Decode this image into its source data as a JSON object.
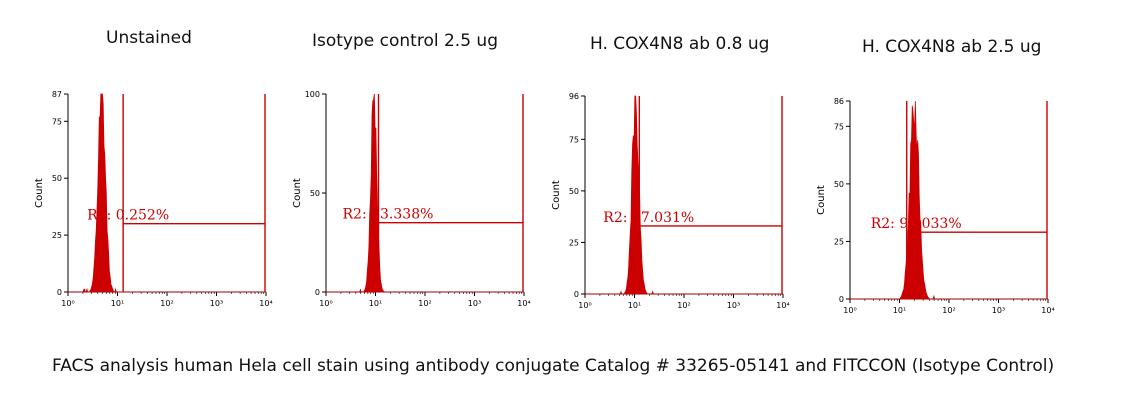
{
  "caption": "FACS analysis human Hela cell stain using antibody conjugate Catalog # 33265-05141 and FITCCON (Isotype Control)",
  "colors": {
    "histogram": "#cc0000",
    "axis": "#000000"
  },
  "chart_data": [
    {
      "type": "histogram",
      "title": "Unstained",
      "ylabel": "Count",
      "ylim": [
        0,
        87
      ],
      "yticks": [
        "0",
        "25",
        "50",
        "75",
        "87"
      ],
      "xscale": "log",
      "xlim": [
        1,
        10000
      ],
      "xticks": [
        "10⁰",
        "10¹",
        "10²",
        "10³",
        "10⁴"
      ],
      "gate": {
        "name": "R2",
        "label": "R2: 0.252%",
        "percent": 0.252,
        "x_range": [
          13,
          10000
        ],
        "y_level": 30
      },
      "peak": {
        "center": 4.8,
        "sigma": 0.075,
        "height": 85
      }
    },
    {
      "type": "histogram",
      "title": "Isotype control 2.5 ug",
      "ylabel": "Count",
      "ylim": [
        0,
        100
      ],
      "yticks": [
        "0",
        "50",
        "100"
      ],
      "xscale": "log",
      "xlim": [
        1,
        10000
      ],
      "xticks": [
        "10⁰",
        "10¹",
        "10²",
        "10³",
        "10⁴"
      ],
      "gate": {
        "name": "R2",
        "label": "R2: 13.338%",
        "percent": 13.338,
        "x_range": [
          11.5,
          10000
        ],
        "y_level": 35
      },
      "peak": {
        "center": 9.2,
        "sigma": 0.06,
        "height": 98
      }
    },
    {
      "type": "histogram",
      "title": "H. COX4N8 ab 0.8 ug",
      "ylabel": "Count",
      "ylim": [
        0,
        96
      ],
      "yticks": [
        "0",
        "25",
        "50",
        "75",
        "96"
      ],
      "xscale": "log",
      "xlim": [
        1,
        10000
      ],
      "xticks": [
        "10⁰",
        "10¹",
        "10²",
        "10³",
        "10⁴"
      ],
      "gate": {
        "name": "R2",
        "label": "R2: 27.031%",
        "percent": 27.031,
        "x_range": [
          12.5,
          10000
        ],
        "y_level": 33
      },
      "peak": {
        "center": 10.5,
        "sigma": 0.07,
        "height": 95
      }
    },
    {
      "type": "histogram",
      "title": "H. COX4N8 ab 2.5 ug",
      "ylabel": "Count",
      "ylim": [
        0,
        86
      ],
      "yticks": [
        "0",
        "25",
        "50",
        "75",
        "86"
      ],
      "xscale": "log",
      "xlim": [
        1,
        10000
      ],
      "xticks": [
        "10⁰",
        "10¹",
        "10²",
        "10³",
        "10⁴"
      ],
      "gate": {
        "name": "R2",
        "label": "R2: 92.033%",
        "percent": 92.033,
        "x_range": [
          14,
          10000
        ],
        "y_level": 29
      },
      "peak": {
        "center": 20,
        "sigma": 0.09,
        "height": 84
      }
    }
  ]
}
